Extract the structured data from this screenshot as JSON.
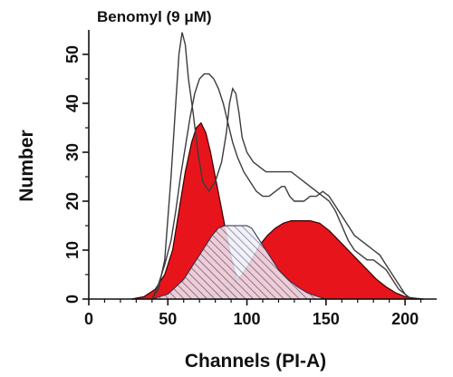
{
  "chart_data": {
    "type": "area",
    "title": "Benomyl (9 μM)",
    "xlabel": "Channels (PI-A)",
    "ylabel": "Number",
    "xlim": [
      0,
      220
    ],
    "ylim": [
      0,
      55
    ],
    "xticks": [
      0,
      50,
      100,
      150,
      200
    ],
    "yticks": [
      0,
      10,
      20,
      30,
      40,
      50
    ],
    "series": [
      {
        "role": "histogram outline A",
        "style": "line",
        "points": [
          [
            40,
            0
          ],
          [
            44,
            2
          ],
          [
            48,
            8
          ],
          [
            52,
            25
          ],
          [
            55,
            40
          ],
          [
            57,
            50
          ],
          [
            59,
            54.5
          ],
          [
            61,
            52
          ],
          [
            63,
            45
          ],
          [
            66,
            38
          ],
          [
            69,
            30
          ],
          [
            72,
            24
          ],
          [
            76,
            22
          ],
          [
            80,
            24
          ],
          [
            84,
            28
          ],
          [
            87,
            34
          ],
          [
            89,
            40
          ],
          [
            91,
            43
          ],
          [
            93,
            42
          ],
          [
            95,
            38
          ],
          [
            97,
            33
          ],
          [
            100,
            30
          ],
          [
            104,
            28
          ],
          [
            108,
            27
          ],
          [
            112,
            26
          ],
          [
            118,
            26
          ],
          [
            124,
            26
          ],
          [
            128,
            26
          ],
          [
            132,
            25
          ],
          [
            136,
            24
          ],
          [
            140,
            23
          ],
          [
            144,
            22
          ],
          [
            148,
            21
          ],
          [
            152,
            20
          ],
          [
            156,
            18
          ],
          [
            160,
            15
          ],
          [
            164,
            12
          ],
          [
            168,
            10
          ],
          [
            172,
            9
          ],
          [
            176,
            8
          ],
          [
            180,
            8
          ],
          [
            184,
            7
          ],
          [
            188,
            6
          ],
          [
            192,
            4
          ],
          [
            196,
            2
          ],
          [
            200,
            1
          ],
          [
            203,
            0
          ]
        ]
      },
      {
        "role": "histogram outline B",
        "style": "line",
        "points": [
          [
            40,
            0
          ],
          [
            44,
            3
          ],
          [
            48,
            7
          ],
          [
            52,
            12
          ],
          [
            55,
            18
          ],
          [
            58,
            25
          ],
          [
            61,
            31
          ],
          [
            64,
            37
          ],
          [
            67,
            42
          ],
          [
            70,
            45
          ],
          [
            73,
            46
          ],
          [
            76,
            46
          ],
          [
            79,
            45
          ],
          [
            82,
            43
          ],
          [
            85,
            40
          ],
          [
            88,
            36
          ],
          [
            91,
            32
          ],
          [
            94,
            29
          ],
          [
            98,
            26
          ],
          [
            102,
            24
          ],
          [
            106,
            22
          ],
          [
            110,
            21
          ],
          [
            114,
            21
          ],
          [
            118,
            22
          ],
          [
            122,
            23
          ],
          [
            124,
            23
          ],
          [
            127,
            21
          ],
          [
            130,
            20
          ],
          [
            133,
            20
          ],
          [
            136,
            20
          ],
          [
            140,
            21
          ],
          [
            144,
            21
          ],
          [
            148,
            22
          ],
          [
            152,
            21
          ],
          [
            156,
            19
          ],
          [
            160,
            17
          ],
          [
            164,
            15
          ],
          [
            168,
            13
          ],
          [
            172,
            12
          ],
          [
            176,
            11
          ],
          [
            180,
            10
          ],
          [
            184,
            9
          ],
          [
            188,
            7
          ],
          [
            192,
            5
          ],
          [
            196,
            3
          ],
          [
            200,
            1
          ],
          [
            204,
            0
          ]
        ]
      },
      {
        "role": "G1 peak (filled)",
        "style": "red-fill",
        "points": [
          [
            27,
            0
          ],
          [
            35,
            0.5
          ],
          [
            42,
            2
          ],
          [
            48,
            5
          ],
          [
            53,
            10
          ],
          [
            57,
            18
          ],
          [
            61,
            26
          ],
          [
            65,
            32
          ],
          [
            68,
            35
          ],
          [
            71,
            36
          ],
          [
            74,
            34
          ],
          [
            77,
            30
          ],
          [
            80,
            25
          ],
          [
            83,
            20
          ],
          [
            86,
            15
          ],
          [
            89,
            10
          ],
          [
            92,
            6
          ],
          [
            95,
            3
          ],
          [
            98,
            1
          ],
          [
            101,
            0.3
          ],
          [
            104,
            0
          ]
        ]
      },
      {
        "role": "G2/M peak (filled)",
        "style": "red-fill",
        "points": [
          [
            70,
            0
          ],
          [
            80,
            1
          ],
          [
            90,
            2.5
          ],
          [
            97,
            5
          ],
          [
            103,
            8
          ],
          [
            108,
            11
          ],
          [
            113,
            13
          ],
          [
            118,
            14.5
          ],
          [
            123,
            15.5
          ],
          [
            128,
            16
          ],
          [
            140,
            16
          ],
          [
            146,
            15.5
          ],
          [
            152,
            14
          ],
          [
            158,
            12
          ],
          [
            164,
            10
          ],
          [
            170,
            8
          ],
          [
            176,
            6
          ],
          [
            182,
            4
          ],
          [
            188,
            2.5
          ],
          [
            194,
            1.3
          ],
          [
            200,
            0.5
          ],
          [
            205,
            0.2
          ],
          [
            212,
            0
          ]
        ]
      },
      {
        "role": "S phase (hatched)",
        "style": "hatch",
        "points": [
          [
            40,
            0
          ],
          [
            50,
            1
          ],
          [
            60,
            4
          ],
          [
            68,
            8
          ],
          [
            74,
            11
          ],
          [
            78,
            13
          ],
          [
            82,
            14.5
          ],
          [
            86,
            15
          ],
          [
            100,
            15
          ],
          [
            103,
            14.5
          ],
          [
            106,
            13
          ],
          [
            110,
            11
          ],
          [
            115,
            8.5
          ],
          [
            120,
            6
          ],
          [
            126,
            4
          ],
          [
            132,
            2.5
          ],
          [
            138,
            1.3
          ],
          [
            144,
            0.6
          ],
          [
            150,
            0
          ]
        ]
      }
    ],
    "colors": {
      "fill": "#e8141c",
      "edge": "#3a0000",
      "hatch": "#5a5a86",
      "hatch_bg": "#eeeef7",
      "line": "#3c3c3c",
      "axis": "#111111"
    }
  }
}
